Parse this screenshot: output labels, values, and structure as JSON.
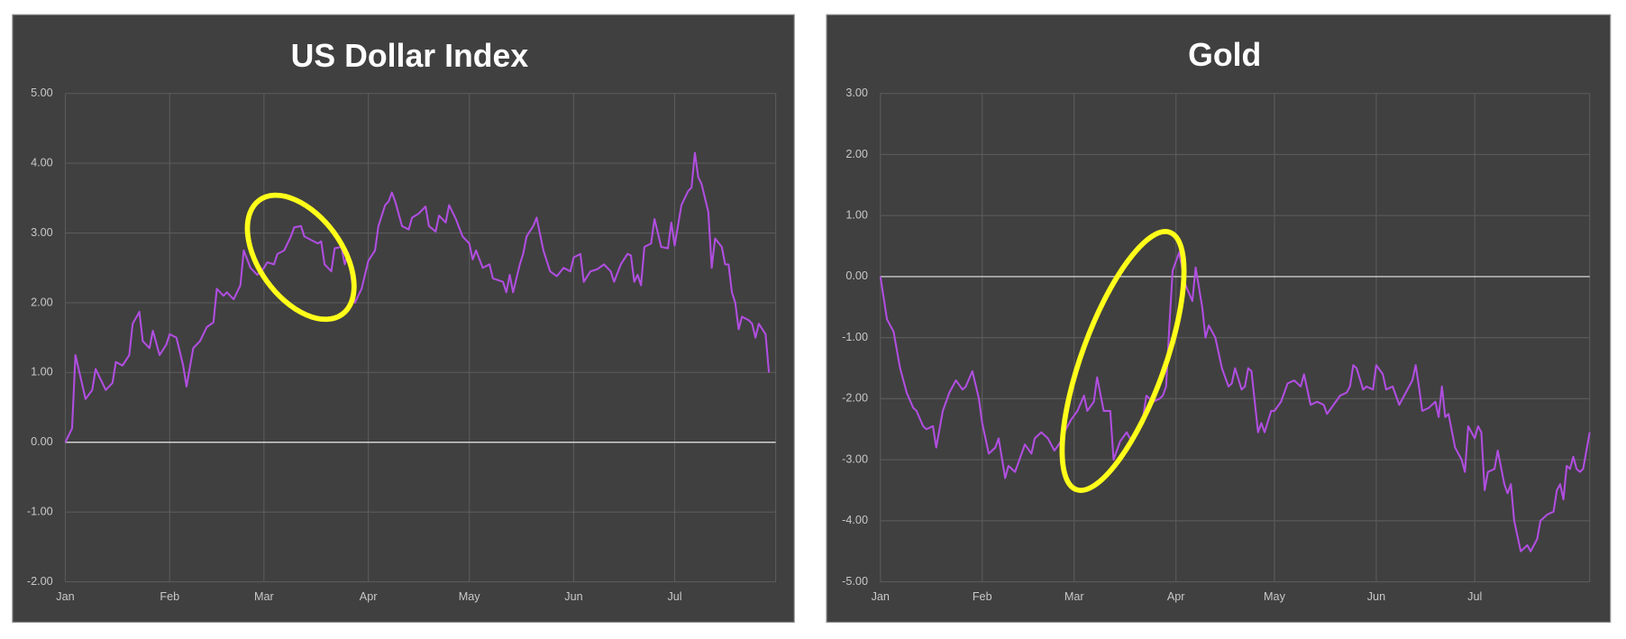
{
  "chart_data": [
    {
      "type": "line",
      "title": "US Dollar Index",
      "x": [
        0,
        2,
        3,
        6,
        8,
        9,
        12,
        14,
        15,
        17,
        19,
        20,
        22,
        23,
        25,
        26,
        28,
        30,
        31,
        33,
        35,
        36,
        38,
        40,
        42,
        44,
        45,
        47,
        48,
        50,
        52,
        53,
        55,
        57,
        59,
        60,
        62,
        63,
        65,
        67,
        68,
        70,
        71,
        73,
        75,
        76,
        77,
        79,
        80,
        82,
        83,
        84,
        86,
        88,
        90,
        92,
        93,
        95,
        96,
        97,
        98,
        100,
        102,
        103,
        105,
        107,
        108,
        110,
        111,
        113,
        114,
        116,
        118,
        120,
        121,
        122,
        124,
        126,
        127,
        130,
        131,
        132,
        133,
        135,
        136,
        137,
        139,
        140,
        142,
        144,
        146,
        148,
        150,
        151,
        153,
        154,
        156,
        158,
        160,
        162,
        163,
        165,
        167,
        168,
        169,
        170,
        171,
        172,
        174,
        175,
        177,
        179,
        180,
        181,
        183,
        185,
        186,
        187,
        188,
        189,
        191,
        192,
        193,
        195,
        196,
        197,
        198,
        199,
        200,
        201,
        203,
        204,
        205,
        206,
        208,
        209
      ],
      "series": [
        {
          "color": "#b04ee0",
          "values": [
            0,
            0.2,
            1.25,
            0.62,
            0.75,
            1.05,
            0.75,
            0.85,
            1.15,
            1.1,
            1.25,
            1.7,
            1.87,
            1.45,
            1.35,
            1.6,
            1.25,
            1.4,
            1.55,
            1.5,
            1.1,
            0.8,
            1.35,
            1.45,
            1.65,
            1.72,
            2.2,
            2.1,
            2.15,
            2.05,
            2.25,
            2.75,
            2.5,
            2.4,
            2.5,
            2.58,
            2.55,
            2.7,
            2.75,
            2.95,
            3.08,
            3.1,
            2.95,
            2.9,
            2.85,
            2.88,
            2.55,
            2.45,
            2.78,
            2.8,
            2.55,
            2.72,
            2.0,
            2.2,
            2.6,
            2.75,
            3.1,
            3.4,
            3.45,
            3.58,
            3.45,
            3.1,
            3.05,
            3.22,
            3.28,
            3.38,
            3.1,
            3.02,
            3.25,
            3.15,
            3.4,
            3.2,
            2.95,
            2.85,
            2.62,
            2.75,
            2.5,
            2.55,
            2.35,
            2.3,
            2.15,
            2.4,
            2.15,
            2.55,
            2.7,
            2.95,
            3.1,
            3.22,
            2.75,
            2.45,
            2.38,
            2.5,
            2.45,
            2.65,
            2.7,
            2.3,
            2.45,
            2.48,
            2.55,
            2.45,
            2.3,
            2.55,
            2.7,
            2.68,
            2.3,
            2.4,
            2.25,
            2.8,
            2.85,
            3.2,
            2.8,
            2.78,
            3.15,
            2.82,
            3.4,
            3.6,
            3.65,
            4.15,
            3.8,
            3.7,
            3.3,
            2.5,
            2.92,
            2.8,
            2.55,
            2.55,
            2.15,
            2.0,
            1.62,
            1.8,
            1.75,
            1.7,
            1.5,
            1.7,
            1.55,
            1.0
          ]
        }
      ],
      "xlim": [
        0,
        211
      ],
      "xticks": [
        {
          "value": 0,
          "label": "Jan"
        },
        {
          "value": 31,
          "label": "Feb"
        },
        {
          "value": 59,
          "label": "Mar"
        },
        {
          "value": 90,
          "label": "Apr"
        },
        {
          "value": 120,
          "label": "May"
        },
        {
          "value": 151,
          "label": "Jun"
        },
        {
          "value": 181,
          "label": "Jul"
        }
      ],
      "ylim": [
        -2,
        5
      ],
      "yticks": [
        {
          "value": 5,
          "label": "5.00"
        },
        {
          "value": 4,
          "label": "4.00"
        },
        {
          "value": 3,
          "label": "3.00"
        },
        {
          "value": 2,
          "label": "2.00"
        },
        {
          "value": 1,
          "label": "1.00"
        },
        {
          "value": 0,
          "label": "0.00"
        },
        {
          "value": -1,
          "label": "-1.00"
        },
        {
          "value": -2,
          "label": "-2.00"
        }
      ],
      "grid": true
    },
    {
      "type": "line",
      "title": "Gold",
      "x": [
        0,
        2,
        4,
        6,
        8,
        10,
        11,
        13,
        14,
        16,
        17,
        19,
        21,
        23,
        25,
        26,
        28,
        30,
        31,
        33,
        35,
        36,
        38,
        39,
        41,
        43,
        44,
        46,
        47,
        49,
        51,
        53,
        55,
        56,
        58,
        60,
        62,
        63,
        65,
        66,
        68,
        70,
        71,
        73,
        75,
        76,
        78,
        80,
        81,
        83,
        85,
        86,
        87,
        88,
        89,
        91,
        92,
        93,
        95,
        96,
        98,
        99,
        100,
        102,
        104,
        106,
        107,
        108,
        110,
        111,
        112,
        113,
        115,
        116,
        117,
        119,
        120,
        122,
        124,
        126,
        128,
        129,
        131,
        133,
        135,
        136,
        138,
        140,
        142,
        143,
        144,
        145,
        147,
        148,
        150,
        151,
        153,
        154,
        156,
        158,
        160,
        162,
        163,
        164,
        165,
        167,
        169,
        170,
        171,
        172,
        173,
        175,
        177,
        178,
        179,
        181,
        182,
        183,
        184,
        185,
        187,
        188,
        190,
        191,
        192,
        193,
        195,
        196,
        197,
        198,
        200,
        201,
        203,
        205,
        206,
        207,
        208,
        209,
        210,
        211,
        212,
        213,
        214,
        216
      ],
      "series": [
        {
          "color": "#b04ee0",
          "values": [
            0,
            -0.7,
            -0.9,
            -1.5,
            -1.9,
            -2.15,
            -2.2,
            -2.45,
            -2.5,
            -2.45,
            -2.8,
            -2.2,
            -1.9,
            -1.7,
            -1.85,
            -1.8,
            -1.55,
            -2.0,
            -2.4,
            -2.9,
            -2.8,
            -2.65,
            -3.3,
            -3.1,
            -3.2,
            -2.9,
            -2.75,
            -2.9,
            -2.65,
            -2.55,
            -2.65,
            -2.85,
            -2.7,
            -2.55,
            -2.35,
            -2.2,
            -1.95,
            -2.2,
            -2.05,
            -1.65,
            -2.2,
            -2.2,
            -3.0,
            -2.7,
            -2.55,
            -2.65,
            -2.6,
            -2.3,
            -1.95,
            -2.05,
            -2.0,
            -1.95,
            -1.8,
            -0.8,
            0.1,
            0.4,
            0.1,
            -0.15,
            -0.4,
            0.15,
            -0.5,
            -1.0,
            -0.8,
            -1.0,
            -1.5,
            -1.8,
            -1.75,
            -1.5,
            -1.85,
            -1.8,
            -1.5,
            -1.55,
            -2.55,
            -2.4,
            -2.55,
            -2.2,
            -2.2,
            -2.05,
            -1.75,
            -1.7,
            -1.8,
            -1.6,
            -2.1,
            -2.05,
            -2.1,
            -2.25,
            -2.1,
            -1.95,
            -1.9,
            -1.8,
            -1.45,
            -1.5,
            -1.85,
            -1.8,
            -1.85,
            -1.45,
            -1.6,
            -1.85,
            -1.8,
            -2.1,
            -1.9,
            -1.7,
            -1.45,
            -1.8,
            -2.2,
            -2.15,
            -2.05,
            -2.3,
            -1.8,
            -2.3,
            -2.25,
            -2.8,
            -3.0,
            -3.2,
            -2.45,
            -2.65,
            -2.45,
            -2.55,
            -3.5,
            -3.2,
            -3.15,
            -2.85,
            -3.4,
            -3.55,
            -3.4,
            -4.0,
            -4.5,
            -4.45,
            -4.4,
            -4.5,
            -4.3,
            -4.0,
            -3.9,
            -3.85,
            -3.5,
            -3.4,
            -3.65,
            -3.1,
            -3.15,
            -2.95,
            -3.15,
            -3.2,
            -3.15,
            -2.55
          ]
        }
      ],
      "xlim": [
        0,
        216
      ],
      "xticks": [
        {
          "value": 0,
          "label": "Jan"
        },
        {
          "value": 31,
          "label": "Feb"
        },
        {
          "value": 59,
          "label": "Mar"
        },
        {
          "value": 90,
          "label": "Apr"
        },
        {
          "value": 120,
          "label": "May"
        },
        {
          "value": 151,
          "label": "Jun"
        },
        {
          "value": 181,
          "label": "Jul"
        }
      ],
      "ylim": [
        -5,
        3
      ],
      "yticks": [
        {
          "value": 3,
          "label": "3.00"
        },
        {
          "value": 2,
          "label": "2.00"
        },
        {
          "value": 1,
          "label": "1.00"
        },
        {
          "value": 0,
          "label": "0.00"
        },
        {
          "value": -1,
          "label": "-1.00"
        },
        {
          "value": -2,
          "label": "-2.00"
        },
        {
          "value": -3,
          "label": "-3.00"
        },
        {
          "value": -4,
          "label": "-4.00"
        },
        {
          "value": -5,
          "label": "-5.00"
        }
      ],
      "grid": true
    }
  ]
}
